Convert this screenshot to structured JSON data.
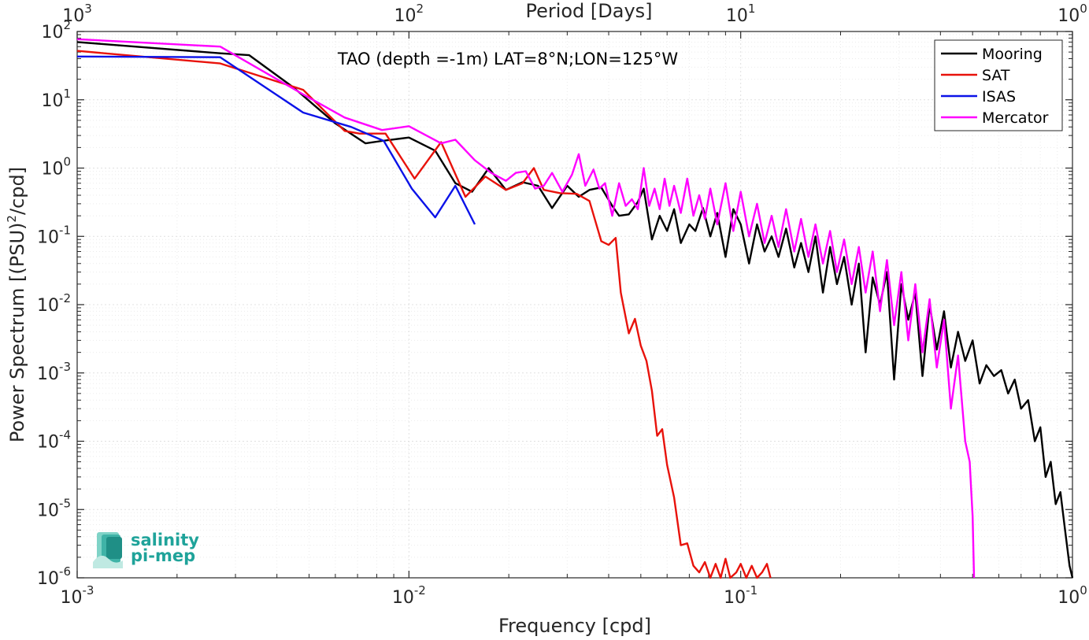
{
  "chart_data": {
    "type": "line",
    "title": "TAO (depth =-1m) LAT=8°N;LON=125°W",
    "xlabel": "Frequency [cpd]",
    "ylabel": "Power Spectrum [(PSU)",
    "ylabel_superscript": "2",
    "ylabel_suffix": "/cpd]",
    "top_xlabel": "Period [Days]",
    "xscale": "log",
    "yscale": "log",
    "xlim": [
      0.001,
      1
    ],
    "ylim": [
      1e-06,
      100
    ],
    "grid": true,
    "legend_position": "top-right",
    "x_ticks": [
      {
        "value": 0.001,
        "base": "10",
        "exp": "-3"
      },
      {
        "value": 0.01,
        "base": "10",
        "exp": "-2"
      },
      {
        "value": 0.1,
        "base": "10",
        "exp": "-1"
      },
      {
        "value": 1,
        "base": "10",
        "exp": "0"
      }
    ],
    "top_x_ticks": [
      {
        "value": 0.001,
        "base": "10",
        "exp": "3"
      },
      {
        "value": 0.01,
        "base": "10",
        "exp": "2"
      },
      {
        "value": 0.1,
        "base": "10",
        "exp": "1"
      },
      {
        "value": 1,
        "base": "10",
        "exp": "0"
      }
    ],
    "y_ticks": [
      {
        "value": 100,
        "base": "10",
        "exp": "2"
      },
      {
        "value": 10,
        "base": "10",
        "exp": "1"
      },
      {
        "value": 1,
        "base": "10",
        "exp": "0"
      },
      {
        "value": 0.1,
        "base": "10",
        "exp": "-1"
      },
      {
        "value": 0.01,
        "base": "10",
        "exp": "-2"
      },
      {
        "value": 0.001,
        "base": "10",
        "exp": "-3"
      },
      {
        "value": 0.0001,
        "base": "10",
        "exp": "-4"
      },
      {
        "value": 1e-05,
        "base": "10",
        "exp": "-5"
      },
      {
        "value": 1e-06,
        "base": "10",
        "exp": "-6"
      }
    ],
    "series": [
      {
        "name": "Mooring",
        "color": "#000000",
        "points": [
          [
            0.001,
            70
          ],
          [
            0.0027,
            48
          ],
          [
            0.0033,
            45
          ],
          [
            0.0045,
            15
          ],
          [
            0.006,
            4.5
          ],
          [
            0.0074,
            2.3
          ],
          [
            0.0083,
            2.5
          ],
          [
            0.01,
            2.8
          ],
          [
            0.012,
            1.8
          ],
          [
            0.0138,
            0.6
          ],
          [
            0.0155,
            0.45
          ],
          [
            0.0174,
            1.0
          ],
          [
            0.0196,
            0.48
          ],
          [
            0.022,
            0.62
          ],
          [
            0.0245,
            0.55
          ],
          [
            0.027,
            0.26
          ],
          [
            0.03,
            0.55
          ],
          [
            0.0325,
            0.38
          ],
          [
            0.035,
            0.48
          ],
          [
            0.038,
            0.52
          ],
          [
            0.041,
            0.28
          ],
          [
            0.043,
            0.2
          ],
          [
            0.046,
            0.21
          ],
          [
            0.049,
            0.32
          ],
          [
            0.051,
            0.5
          ],
          [
            0.054,
            0.09
          ],
          [
            0.057,
            0.2
          ],
          [
            0.06,
            0.12
          ],
          [
            0.063,
            0.25
          ],
          [
            0.066,
            0.08
          ],
          [
            0.07,
            0.15
          ],
          [
            0.073,
            0.12
          ],
          [
            0.077,
            0.26
          ],
          [
            0.081,
            0.1
          ],
          [
            0.085,
            0.22
          ],
          [
            0.09,
            0.05
          ],
          [
            0.095,
            0.25
          ],
          [
            0.1,
            0.15
          ],
          [
            0.106,
            0.04
          ],
          [
            0.112,
            0.15
          ],
          [
            0.118,
            0.06
          ],
          [
            0.124,
            0.1
          ],
          [
            0.13,
            0.05
          ],
          [
            0.137,
            0.13
          ],
          [
            0.145,
            0.035
          ],
          [
            0.152,
            0.08
          ],
          [
            0.16,
            0.03
          ],
          [
            0.168,
            0.1
          ],
          [
            0.177,
            0.015
          ],
          [
            0.186,
            0.07
          ],
          [
            0.195,
            0.02
          ],
          [
            0.205,
            0.05
          ],
          [
            0.216,
            0.01
          ],
          [
            0.227,
            0.04
          ],
          [
            0.238,
            0.002
          ],
          [
            0.25,
            0.025
          ],
          [
            0.263,
            0.01
          ],
          [
            0.276,
            0.03
          ],
          [
            0.29,
            0.0008
          ],
          [
            0.305,
            0.02
          ],
          [
            0.32,
            0.006
          ],
          [
            0.336,
            0.015
          ],
          [
            0.353,
            0.0009
          ],
          [
            0.371,
            0.01
          ],
          [
            0.39,
            0.0022
          ],
          [
            0.41,
            0.008
          ],
          [
            0.43,
            0.0012
          ],
          [
            0.452,
            0.004
          ],
          [
            0.475,
            0.0015
          ],
          [
            0.5,
            0.003
          ],
          [
            0.525,
            0.0007
          ],
          [
            0.55,
            0.0013
          ],
          [
            0.58,
            0.0009
          ],
          [
            0.61,
            0.0011
          ],
          [
            0.64,
            0.0005
          ],
          [
            0.67,
            0.0008
          ],
          [
            0.7,
            0.0003
          ],
          [
            0.735,
            0.0004
          ],
          [
            0.77,
            0.0001
          ],
          [
            0.8,
            0.00016
          ],
          [
            0.83,
            3e-05
          ],
          [
            0.86,
            5e-05
          ],
          [
            0.89,
            1.2e-05
          ],
          [
            0.92,
            1.8e-05
          ],
          [
            0.95,
            5e-06
          ],
          [
            0.98,
            1.5e-06
          ],
          [
            1.0,
            1e-06
          ]
        ]
      },
      {
        "name": "SAT",
        "color": "#e8120b",
        "points": [
          [
            0.001,
            52
          ],
          [
            0.0027,
            34
          ],
          [
            0.0048,
            14
          ],
          [
            0.0064,
            3.5
          ],
          [
            0.0071,
            3.2
          ],
          [
            0.0085,
            3.2
          ],
          [
            0.0104,
            0.7
          ],
          [
            0.0125,
            2.4
          ],
          [
            0.0148,
            0.38
          ],
          [
            0.017,
            0.75
          ],
          [
            0.0196,
            0.48
          ],
          [
            0.022,
            0.6
          ],
          [
            0.0238,
            1.0
          ],
          [
            0.0255,
            0.48
          ],
          [
            0.0285,
            0.43
          ],
          [
            0.032,
            0.42
          ],
          [
            0.035,
            0.33
          ],
          [
            0.038,
            0.085
          ],
          [
            0.04,
            0.075
          ],
          [
            0.042,
            0.095
          ],
          [
            0.0435,
            0.015
          ],
          [
            0.046,
            0.0038
          ],
          [
            0.048,
            0.0062
          ],
          [
            0.05,
            0.0025
          ],
          [
            0.052,
            0.0015
          ],
          [
            0.054,
            0.00055
          ],
          [
            0.056,
            0.00012
          ],
          [
            0.058,
            0.00015
          ],
          [
            0.06,
            4.5e-05
          ],
          [
            0.063,
            1.5e-05
          ],
          [
            0.066,
            3e-06
          ],
          [
            0.069,
            3.2e-06
          ],
          [
            0.072,
            1.5e-06
          ],
          [
            0.075,
            1.2e-06
          ],
          [
            0.078,
            1.7e-06
          ],
          [
            0.081,
            1e-06
          ],
          [
            0.084,
            1.6e-06
          ],
          [
            0.087,
            1e-06
          ],
          [
            0.09,
            1.9e-06
          ],
          [
            0.093,
            1e-06
          ],
          [
            0.097,
            1.2e-06
          ],
          [
            0.1,
            1.6e-06
          ],
          [
            0.104,
            1e-06
          ],
          [
            0.108,
            1.5e-06
          ],
          [
            0.112,
            1e-06
          ],
          [
            0.116,
            1.2e-06
          ],
          [
            0.12,
            1.6e-06
          ],
          [
            0.123,
            1e-06
          ]
        ]
      },
      {
        "name": "ISAS",
        "color": "#0b12e8",
        "points": [
          [
            0.001,
            43
          ],
          [
            0.0027,
            42
          ],
          [
            0.0048,
            6.5
          ],
          [
            0.0067,
            4.0
          ],
          [
            0.0084,
            2.5
          ],
          [
            0.0102,
            0.5
          ],
          [
            0.012,
            0.19
          ],
          [
            0.0138,
            0.55
          ],
          [
            0.0158,
            0.15
          ]
        ]
      },
      {
        "name": "Mercator",
        "color": "#ff00ff",
        "points": [
          [
            0.001,
            77
          ],
          [
            0.0027,
            60
          ],
          [
            0.0048,
            12
          ],
          [
            0.0064,
            5.5
          ],
          [
            0.0083,
            3.6
          ],
          [
            0.01,
            4.1
          ],
          [
            0.0125,
            2.3
          ],
          [
            0.0138,
            2.6
          ],
          [
            0.0158,
            1.3
          ],
          [
            0.0177,
            0.85
          ],
          [
            0.0196,
            0.65
          ],
          [
            0.021,
            0.85
          ],
          [
            0.0225,
            0.9
          ],
          [
            0.024,
            0.5
          ],
          [
            0.0255,
            0.55
          ],
          [
            0.027,
            0.85
          ],
          [
            0.029,
            0.45
          ],
          [
            0.031,
            0.8
          ],
          [
            0.0325,
            1.6
          ],
          [
            0.034,
            0.55
          ],
          [
            0.036,
            0.95
          ],
          [
            0.0375,
            0.5
          ],
          [
            0.039,
            0.6
          ],
          [
            0.041,
            0.2
          ],
          [
            0.043,
            0.6
          ],
          [
            0.045,
            0.28
          ],
          [
            0.047,
            0.35
          ],
          [
            0.049,
            0.25
          ],
          [
            0.051,
            1.0
          ],
          [
            0.053,
            0.28
          ],
          [
            0.055,
            0.5
          ],
          [
            0.057,
            0.25
          ],
          [
            0.059,
            0.7
          ],
          [
            0.061,
            0.28
          ],
          [
            0.063,
            0.55
          ],
          [
            0.066,
            0.22
          ],
          [
            0.069,
            0.7
          ],
          [
            0.072,
            0.2
          ],
          [
            0.075,
            0.4
          ],
          [
            0.078,
            0.18
          ],
          [
            0.081,
            0.5
          ],
          [
            0.085,
            0.15
          ],
          [
            0.09,
            0.6
          ],
          [
            0.095,
            0.12
          ],
          [
            0.1,
            0.45
          ],
          [
            0.106,
            0.1
          ],
          [
            0.112,
            0.3
          ],
          [
            0.118,
            0.08
          ],
          [
            0.124,
            0.2
          ],
          [
            0.13,
            0.07
          ],
          [
            0.137,
            0.25
          ],
          [
            0.145,
            0.06
          ],
          [
            0.152,
            0.18
          ],
          [
            0.16,
            0.05
          ],
          [
            0.168,
            0.15
          ],
          [
            0.177,
            0.04
          ],
          [
            0.186,
            0.12
          ],
          [
            0.195,
            0.03
          ],
          [
            0.205,
            0.09
          ],
          [
            0.216,
            0.02
          ],
          [
            0.227,
            0.07
          ],
          [
            0.238,
            0.015
          ],
          [
            0.25,
            0.06
          ],
          [
            0.263,
            0.008
          ],
          [
            0.276,
            0.045
          ],
          [
            0.29,
            0.005
          ],
          [
            0.305,
            0.03
          ],
          [
            0.32,
            0.003
          ],
          [
            0.336,
            0.02
          ],
          [
            0.353,
            0.002
          ],
          [
            0.371,
            0.012
          ],
          [
            0.39,
            0.0012
          ],
          [
            0.41,
            0.006
          ],
          [
            0.43,
            0.0003
          ],
          [
            0.452,
            0.0018
          ],
          [
            0.475,
            0.0001
          ],
          [
            0.49,
            5e-05
          ],
          [
            0.495,
            2e-05
          ],
          [
            0.5,
            8e-06
          ],
          [
            0.505,
            1e-06
          ]
        ]
      }
    ]
  },
  "logo": {
    "line1": "salinity",
    "line2": "pi-mep"
  },
  "colors": {
    "axis": "#262626",
    "grid_major": "#e0e0e0",
    "grid_minor": "#ebebeb",
    "logo": "#1fa39a"
  }
}
